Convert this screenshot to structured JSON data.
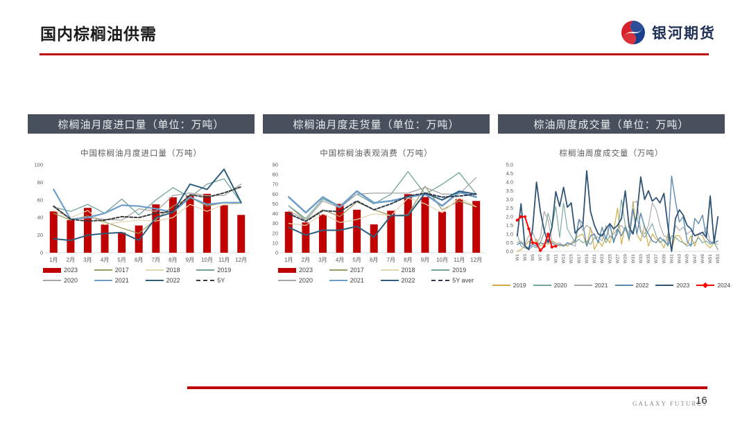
{
  "page": {
    "title": "国内棕榈油供需"
  },
  "logo": {
    "text": "银河期货"
  },
  "footer": {
    "brand": "GALAXY FUTURES",
    "page": "16"
  },
  "colors": {
    "accent": "#C00000",
    "header-bg": "#47505C",
    "header-text": "#EDEFF2",
    "muted-text": "#595959",
    "logo-red": "#D7202C",
    "logo-blue": "#1B3F8F",
    "logo-text": "#1E2F55"
  },
  "chart_data": [
    {
      "type": "bar",
      "header": "棕榈油月度进口量（单位：万吨）",
      "title": "中国棕榈油月度进口量（万吨）",
      "categories": [
        "1月",
        "2月",
        "3月",
        "4月",
        "5月",
        "6月",
        "7月",
        "8月",
        "9月",
        "10月",
        "11月",
        "12月"
      ],
      "ylim": [
        0,
        100
      ],
      "ytick_step": 20,
      "tick_decimals": 0,
      "grid": false,
      "legend_position": "bottom",
      "series": [
        {
          "name": "2023",
          "type": "bar",
          "color": "#C00000",
          "values": [
            47,
            37,
            51,
            32,
            23,
            31,
            55,
            63,
            65,
            67,
            54,
            43
          ]
        },
        {
          "name": "2017",
          "type": "line",
          "color": "#9C9A60",
          "values": [
            45,
            37,
            42,
            35,
            28,
            22,
            38,
            53,
            63,
            53,
            57,
            56
          ]
        },
        {
          "name": "2018",
          "type": "line",
          "color": "#E3D5B0",
          "values": [
            48,
            40,
            48,
            32,
            35,
            37,
            36,
            40,
            55,
            47,
            55,
            56
          ]
        },
        {
          "name": "2019",
          "type": "line",
          "color": "#72A39A",
          "values": [
            52,
            47,
            55,
            45,
            61,
            43,
            60,
            74,
            63,
            78,
            84,
            57
          ]
        },
        {
          "name": "2020",
          "type": "line",
          "color": "#A6A6A6",
          "values": [
            52,
            38,
            40,
            38,
            37,
            50,
            47,
            65,
            68,
            65,
            65,
            78
          ]
        },
        {
          "name": "2021",
          "type": "line",
          "color": "#6D9EC9",
          "width": 2.2,
          "values": [
            72,
            38,
            40,
            45,
            54,
            53,
            50,
            46,
            63,
            55,
            57,
            57
          ]
        },
        {
          "name": "2022",
          "type": "line",
          "color": "#2E5E7E",
          "width": 2,
          "values": [
            16,
            14,
            20,
            22,
            23,
            14,
            40,
            46,
            78,
            72,
            95,
            57
          ]
        },
        {
          "name": "5Y",
          "type": "line",
          "color": "#3B3B3B",
          "dash": true,
          "width": 2,
          "values": [
            53,
            38,
            36,
            37,
            41,
            40,
            45,
            47,
            66,
            63,
            68,
            75
          ]
        }
      ]
    },
    {
      "type": "bar",
      "header": "棕榈油月度走货量（单位：万吨）",
      "title": "中国棕榈油表观消费（万吨）",
      "categories": [
        "1月",
        "2月",
        "3月",
        "4月",
        "5月",
        "6月",
        "7月",
        "8月",
        "9月",
        "10月",
        "11月",
        "12月"
      ],
      "ylim": [
        0,
        90
      ],
      "ytick_step": 10,
      "tick_decimals": 0,
      "grid": false,
      "legend_position": "bottom",
      "series": [
        {
          "name": "2023",
          "type": "bar",
          "color": "#C00000",
          "values": [
            42,
            31,
            39,
            50,
            44,
            29,
            43,
            60,
            57,
            42,
            55,
            53
          ]
        },
        {
          "name": "2017",
          "type": "line",
          "color": "#9C9A60",
          "values": [
            48,
            33,
            44,
            37,
            52,
            44,
            38,
            39,
            68,
            44,
            53,
            47
          ]
        },
        {
          "name": "2018",
          "type": "line",
          "color": "#E3D5B0",
          "values": [
            30,
            28,
            40,
            31,
            34,
            40,
            38,
            56,
            50,
            41,
            56,
            47
          ]
        },
        {
          "name": "2019",
          "type": "line",
          "color": "#72A39A",
          "values": [
            48,
            35,
            55,
            47,
            60,
            50,
            60,
            83,
            60,
            70,
            82,
            60
          ]
        },
        {
          "name": "2020",
          "type": "line",
          "color": "#A6A6A6",
          "values": [
            43,
            33,
            53,
            46,
            60,
            61,
            61,
            61,
            67,
            60,
            60,
            77
          ]
        },
        {
          "name": "2021",
          "type": "line",
          "color": "#6D9EC9",
          "width": 2.6,
          "values": [
            57,
            41,
            57,
            47,
            63,
            51,
            53,
            57,
            60,
            48,
            62,
            57
          ]
        },
        {
          "name": "2022",
          "type": "line",
          "color": "#2E5E7E",
          "width": 2,
          "values": [
            26,
            18,
            23,
            23,
            27,
            16,
            38,
            38,
            61,
            54,
            63,
            60
          ]
        },
        {
          "name": "5Y aver",
          "type": "line",
          "color": "#2E3B4E",
          "dash": true,
          "width": 2,
          "values": [
            40,
            32,
            43,
            42,
            53,
            44,
            50,
            58,
            61,
            57,
            58,
            60
          ]
        }
      ]
    },
    {
      "type": "line",
      "header": "棕油周度成交量（单位：万吨）",
      "title": "棕榈油周度成交量（万吨）",
      "categories": [
        "W1",
        "W2",
        "W3",
        "W4",
        "W5",
        "W6",
        "W7",
        "W8",
        "W9",
        "W10",
        "W11",
        "W12",
        "W13",
        "W14",
        "W15",
        "W16",
        "W17",
        "W18",
        "W19",
        "W20",
        "W21",
        "W22",
        "W23",
        "W24",
        "W25",
        "W26",
        "W27",
        "W28",
        "W29",
        "W30",
        "W31",
        "W32",
        "W33",
        "W34",
        "W35",
        "W36",
        "W37",
        "W38",
        "W39",
        "W40",
        "W41",
        "W42",
        "W43",
        "W44",
        "W45",
        "W46",
        "W47",
        "W48",
        "W49",
        "W50",
        "W51",
        "W52",
        "W53"
      ],
      "ylim": [
        0,
        5
      ],
      "ytick_step": 0.5,
      "tick_decimals": 1,
      "xtick_every": 2,
      "xtick_rotate": true,
      "grid": false,
      "legend_position": "bottom",
      "series": [
        {
          "name": "2019",
          "type": "line",
          "color": "#D2A93C",
          "width": 1.1,
          "values": [
            0.0,
            0.1,
            0.3,
            0.6,
            0.4,
            0.7,
            0.3,
            0.5,
            0.4,
            0.6,
            0.5,
            0.3,
            0.4,
            0.3,
            0.5,
            0.7,
            0.9,
            1.0,
            0.3,
            1.4,
            0.1,
            0.6,
            0.3,
            0.8,
            0.5,
            1.2,
            2.5,
            0.4,
            1.5,
            0.6,
            2.9,
            1.0,
            0.6,
            1.5,
            0.3,
            1.0,
            0.7,
            0.6,
            0.2,
            1.0,
            0.1,
            0.9,
            0.9,
            0.5,
            0.4,
            0.9,
            0.3,
            1.0,
            0.9,
            0.4,
            0.2,
            0.5,
            0.1
          ]
        },
        {
          "name": "2020",
          "type": "line",
          "color": "#72A39A",
          "width": 1.1,
          "values": [
            1.0,
            0.3,
            0.2,
            0.1,
            0.3,
            0.2,
            0.5,
            1.1,
            2.2,
            1.4,
            2.6,
            0.8,
            2.8,
            1.3,
            0.9,
            0.5,
            0.7,
            0.5,
            0.6,
            0.4,
            0.8,
            0.6,
            1.0,
            0.5,
            0.9,
            0.7,
            1.0,
            3.0,
            1.5,
            0.9,
            1.2,
            2.0,
            1.1,
            0.8,
            1.2,
            1.6,
            0.9,
            0.5,
            0.7,
            0.3,
            0.9,
            0.8,
            0.6,
            0.5,
            0.3,
            0.4,
            0.5,
            0.8,
            0.5,
            0.6,
            0.4,
            0.5,
            0.1
          ]
        },
        {
          "name": "2021",
          "type": "line",
          "color": "#A6A6A6",
          "width": 1.1,
          "values": [
            0.5,
            0.6,
            0.4,
            0.9,
            1.1,
            0.5,
            0.8,
            2.3,
            1.8,
            0.6,
            0.4,
            0.5,
            0.3,
            0.4,
            0.4,
            0.3,
            1.8,
            1.2,
            1.5,
            1.3,
            0.9,
            0.8,
            0.6,
            1.5,
            0.8,
            1.0,
            1.3,
            1.5,
            1.2,
            1.1,
            2.8,
            2.9,
            1.2,
            1.0,
            1.5,
            2.8,
            2.4,
            1.5,
            0.9,
            0.8,
            0.2,
            1.5,
            1.2,
            1.4,
            1.0,
            1.2,
            0.9,
            1.0,
            0.9,
            1.4,
            0.6,
            0.5,
            0.4
          ]
        },
        {
          "name": "2022",
          "type": "line",
          "color": "#5B88B0",
          "width": 1.4,
          "values": [
            0.4,
            0.5,
            0.3,
            0.2,
            0.4,
            0.3,
            0.5,
            0.4,
            0.6,
            0.5,
            0.3,
            0.4,
            0.3,
            0.5,
            0.4,
            0.6,
            1.85,
            1.6,
            0.3,
            0.9,
            1.0,
            0.5,
            1.4,
            0.7,
            1.55,
            0.5,
            1.3,
            0.9,
            1.4,
            0.7,
            2.45,
            1.0,
            2.2,
            1.4,
            1.0,
            0.6,
            0.5,
            0.8,
            0.6,
            0.4,
            4.35,
            2.9,
            1.7,
            2.0,
            0.6,
            0.3,
            1.9,
            1.6,
            2.1,
            0.8,
            0.5,
            0.5,
            0.6
          ]
        },
        {
          "name": "2023",
          "type": "line",
          "color": "#2F5373",
          "width": 1.8,
          "values": [
            0.9,
            2.75,
            0.3,
            0.1,
            1.3,
            4.0,
            2.3,
            1.2,
            0.5,
            1.4,
            3.45,
            2.6,
            3.7,
            2.55,
            2.8,
            1.05,
            1.3,
            1.5,
            4.65,
            2.3,
            1.5,
            1.0,
            0.9,
            1.3,
            1.6,
            1.3,
            1.5,
            1.9,
            3.5,
            1.4,
            1.0,
            2.1,
            4.3,
            3.0,
            3.5,
            2.9,
            3.1,
            2.8,
            3.35,
            1.5,
            0.0,
            1.9,
            2.4,
            2.1,
            1.5,
            1.3,
            0.9,
            1.0,
            1.1,
            0.8,
            3.2,
            0.5,
            2.0
          ]
        },
        {
          "name": "2024",
          "type": "line",
          "color": "#FF0000",
          "width": 2,
          "marker": true,
          "values": [
            1.8,
            2.0,
            2.0,
            1.3,
            0.5,
            0.45,
            0.05,
            0.3,
            1.0,
            0.25,
            0.3,
            null,
            null,
            null,
            null,
            null,
            null,
            null,
            null,
            null,
            null,
            null,
            null,
            null,
            null,
            null,
            null,
            null,
            null,
            null,
            null,
            null,
            null,
            null,
            null,
            null,
            null,
            null,
            null,
            null,
            null,
            null,
            null,
            null,
            null,
            null,
            null,
            null,
            null,
            null,
            null,
            null,
            null
          ]
        }
      ]
    }
  ]
}
